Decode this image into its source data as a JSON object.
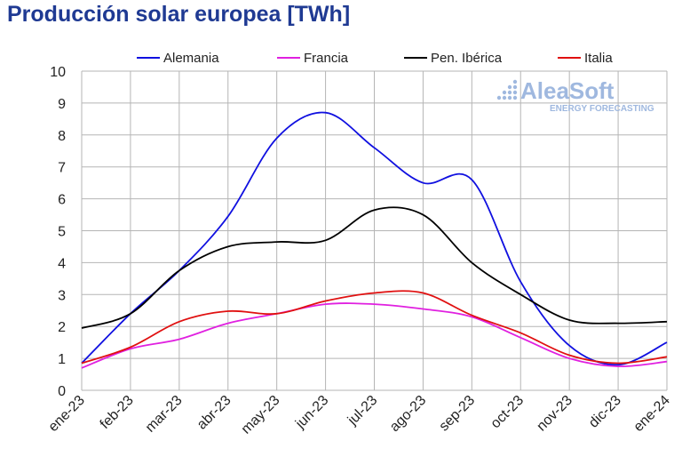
{
  "chart_data": {
    "type": "line",
    "title": "Producción solar europea [TWh]",
    "categories": [
      "ene-23",
      "feb-23",
      "mar-23",
      "abr-23",
      "may-23",
      "jun-23",
      "jul-23",
      "ago-23",
      "sep-23",
      "oct-23",
      "nov-23",
      "dic-23",
      "ene-24"
    ],
    "series": [
      {
        "name": "Alemania",
        "color": "#1010e0",
        "values": [
          0.85,
          2.4,
          3.75,
          5.45,
          7.9,
          8.7,
          7.6,
          6.5,
          6.6,
          3.4,
          1.4,
          0.8,
          1.5
        ]
      },
      {
        "name": "Francia",
        "color": "#e020e0",
        "values": [
          0.7,
          1.3,
          1.6,
          2.1,
          2.4,
          2.7,
          2.7,
          2.55,
          2.3,
          1.65,
          1.0,
          0.75,
          0.9
        ]
      },
      {
        "name": "Pen. Ibérica",
        "color": "#000000",
        "values": [
          1.95,
          2.4,
          3.75,
          4.5,
          4.65,
          4.7,
          5.65,
          5.5,
          4.0,
          3.0,
          2.2,
          2.1,
          2.15
        ]
      },
      {
        "name": "Italia",
        "color": "#e01010",
        "values": [
          0.85,
          1.35,
          2.15,
          2.48,
          2.4,
          2.8,
          3.05,
          3.05,
          2.35,
          1.8,
          1.1,
          0.85,
          1.05
        ]
      }
    ],
    "ylim": [
      0,
      10
    ],
    "yticks": [
      "0",
      "1",
      "2",
      "3",
      "4",
      "5",
      "6",
      "7",
      "8",
      "9",
      "10"
    ],
    "grid": true,
    "legend_position": "top"
  },
  "logo": {
    "name": "AleaSoft",
    "tagline": "ENERGY FORECASTING"
  }
}
